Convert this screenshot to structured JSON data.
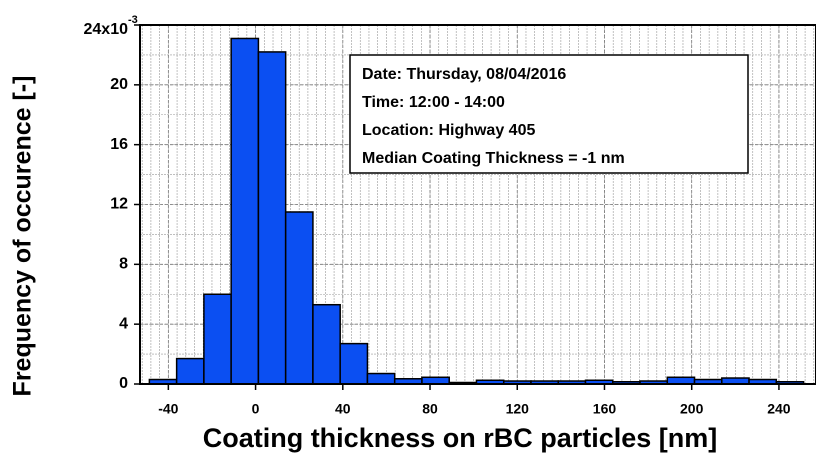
{
  "chart_data": {
    "type": "histogram",
    "xlabel": "Coating thickness on rBC particles [nm]",
    "ylabel": "Frequency of occurence [-]",
    "y_exponent": "-3",
    "bins": [
      -48.7,
      -36.2,
      -23.7,
      -11.2,
      1.3,
      13.8,
      26.3,
      38.8,
      51.3,
      63.8,
      76.3,
      88.8,
      101.3,
      113.8,
      126.3,
      138.8,
      151.3,
      163.8,
      176.3,
      188.8,
      201.3,
      213.8,
      226.3,
      238.8,
      251.3
    ],
    "values": [
      0.3,
      1.7,
      6.0,
      23.1,
      22.2,
      11.5,
      5.3,
      2.7,
      0.7,
      0.35,
      0.45,
      0.1,
      0.25,
      0.2,
      0.2,
      0.2,
      0.25,
      0.15,
      0.2,
      0.45,
      0.3,
      0.4,
      0.3,
      0.15
    ],
    "color": "#0b4ff2",
    "xlim": [
      -53,
      257
    ],
    "ylim": [
      0,
      24
    ],
    "xticks": [
      -40,
      0,
      40,
      80,
      120,
      160,
      200,
      240
    ],
    "yticks": [
      0,
      4,
      8,
      12,
      16,
      20,
      {
        "value": 24,
        "label": "24x10"
      }
    ],
    "grid": true,
    "annotations": [
      "Date: Thursday, 08/04/2016",
      "Time: 12:00 - 14:00",
      "Location: Highway 405",
      "Median Coating Thickness = -1 nm"
    ]
  }
}
